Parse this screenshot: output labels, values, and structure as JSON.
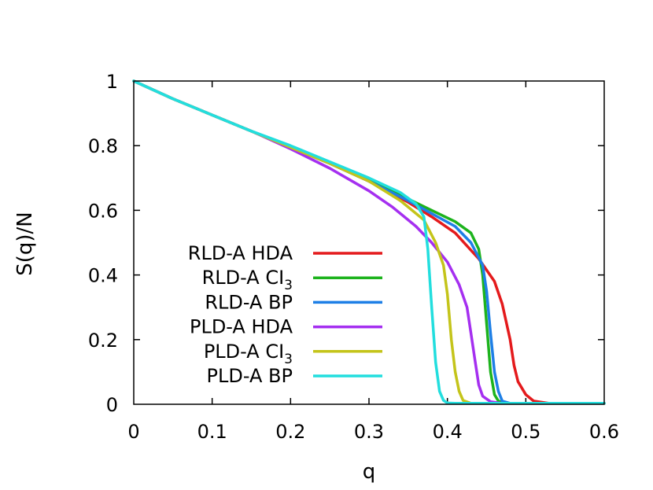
{
  "chart_data": {
    "type": "line",
    "title": "",
    "xlabel": "q",
    "ylabel": "S(q)/N",
    "xlim": [
      0,
      0.6
    ],
    "ylim": [
      0,
      1
    ],
    "x_ticks": [
      "0",
      "0.1",
      "0.2",
      "0.3",
      "0.4",
      "0.5",
      "0.6"
    ],
    "y_ticks": [
      "0",
      "0.2",
      "0.4",
      "0.6",
      "0.8",
      "1"
    ],
    "legend_position": "left-lower",
    "series": [
      {
        "name": "RLD-A HDA",
        "label_main": "RLD-A HDA",
        "label_sub": "",
        "color": "#e41a1c",
        "x": [
          0,
          0.05,
          0.1,
          0.15,
          0.2,
          0.25,
          0.3,
          0.35,
          0.38,
          0.41,
          0.44,
          0.46,
          0.47,
          0.48,
          0.485,
          0.49,
          0.5,
          0.51,
          0.53,
          0.6
        ],
        "y": [
          1,
          0.945,
          0.895,
          0.845,
          0.795,
          0.745,
          0.69,
          0.625,
          0.58,
          0.53,
          0.45,
          0.38,
          0.31,
          0.2,
          0.12,
          0.07,
          0.03,
          0.01,
          0.003,
          0.003
        ]
      },
      {
        "name": "RLD-A CI3",
        "label_main": "RLD-A CI",
        "label_sub": "3",
        "color": "#1db31d",
        "x": [
          0,
          0.05,
          0.1,
          0.15,
          0.2,
          0.25,
          0.3,
          0.35,
          0.38,
          0.41,
          0.43,
          0.44,
          0.445,
          0.45,
          0.455,
          0.46,
          0.465,
          0.475,
          0.6
        ],
        "y": [
          1,
          0.945,
          0.895,
          0.845,
          0.795,
          0.745,
          0.695,
          0.635,
          0.6,
          0.565,
          0.53,
          0.48,
          0.4,
          0.25,
          0.1,
          0.03,
          0.01,
          0.003,
          0.003
        ]
      },
      {
        "name": "RLD-A BP",
        "label_main": "RLD-A BP",
        "label_sub": "",
        "color": "#1e7fe6",
        "x": [
          0,
          0.05,
          0.1,
          0.15,
          0.2,
          0.25,
          0.3,
          0.35,
          0.38,
          0.41,
          0.43,
          0.445,
          0.45,
          0.455,
          0.46,
          0.465,
          0.47,
          0.48,
          0.6
        ],
        "y": [
          1,
          0.945,
          0.895,
          0.845,
          0.795,
          0.745,
          0.69,
          0.63,
          0.59,
          0.55,
          0.5,
          0.43,
          0.35,
          0.22,
          0.1,
          0.04,
          0.01,
          0.003,
          0.003
        ]
      },
      {
        "name": "PLD-A HDA",
        "label_main": "PLD-A HDA",
        "label_sub": "",
        "color": "#a52ff0",
        "x": [
          0,
          0.05,
          0.1,
          0.15,
          0.2,
          0.25,
          0.3,
          0.33,
          0.36,
          0.38,
          0.4,
          0.415,
          0.425,
          0.43,
          0.435,
          0.44,
          0.445,
          0.455,
          0.47,
          0.6
        ],
        "y": [
          1,
          0.945,
          0.895,
          0.845,
          0.79,
          0.73,
          0.66,
          0.61,
          0.55,
          0.5,
          0.44,
          0.37,
          0.3,
          0.22,
          0.14,
          0.06,
          0.025,
          0.008,
          0.003,
          0.003
        ]
      },
      {
        "name": "PLD-A CI3",
        "label_main": "PLD-A CI",
        "label_sub": "3",
        "color": "#c4c41a",
        "x": [
          0,
          0.05,
          0.1,
          0.15,
          0.2,
          0.25,
          0.3,
          0.34,
          0.37,
          0.385,
          0.395,
          0.4,
          0.405,
          0.41,
          0.415,
          0.42,
          0.43,
          0.6
        ],
        "y": [
          1,
          0.945,
          0.895,
          0.845,
          0.795,
          0.745,
          0.69,
          0.63,
          0.57,
          0.5,
          0.43,
          0.34,
          0.2,
          0.1,
          0.04,
          0.012,
          0.003,
          0.003
        ]
      },
      {
        "name": "PLD-A BP",
        "label_main": "PLD-A BP",
        "label_sub": "",
        "color": "#22dede",
        "x": [
          0,
          0.05,
          0.1,
          0.15,
          0.2,
          0.25,
          0.3,
          0.34,
          0.36,
          0.37,
          0.375,
          0.38,
          0.385,
          0.39,
          0.395,
          0.4,
          0.41,
          0.6
        ],
        "y": [
          1,
          0.945,
          0.895,
          0.845,
          0.8,
          0.75,
          0.7,
          0.655,
          0.62,
          0.58,
          0.48,
          0.3,
          0.13,
          0.04,
          0.012,
          0.004,
          0.003,
          0.003
        ]
      }
    ]
  }
}
